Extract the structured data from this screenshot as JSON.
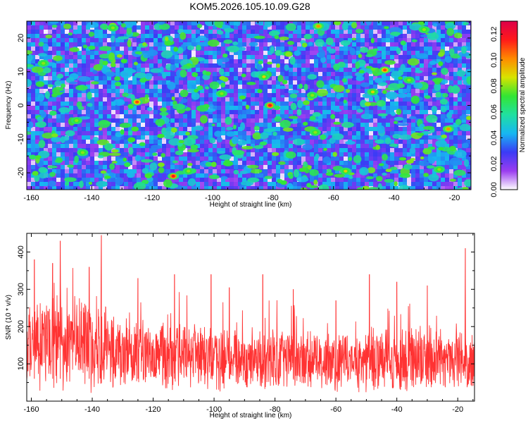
{
  "title": "KOM5.2026.105.10.09.G28",
  "chart_data": [
    {
      "type": "heatmap",
      "xlabel": "Height of straight line (km)",
      "ylabel": "Frequency (Hz)",
      "xlim": [
        -161.5,
        -14.5
      ],
      "ylim": [
        -25,
        25
      ],
      "xticks": [
        -160,
        -140,
        -120,
        -100,
        -80,
        -60,
        -40,
        -20
      ],
      "yticks": [
        -20,
        -10,
        0,
        10,
        20
      ],
      "colorbar": {
        "label": "Normalized spectral amplitude",
        "range": [
          0,
          0.13
        ],
        "ticks": [
          0.0,
          0.02,
          0.04,
          0.06,
          0.08,
          0.1,
          0.12
        ],
        "tick_labels": [
          "0.00",
          "0.02",
          "0.04",
          "0.06",
          "0.08",
          "0.10",
          "0.12"
        ],
        "colormap": [
          "#ffffff",
          "#9a3df0",
          "#3b3bf5",
          "#17b7f2",
          "#20e0a0",
          "#33e533",
          "#d8e400",
          "#ff8a00",
          "#ff1a1a",
          "#dd004a"
        ]
      },
      "peak_spots": [
        {
          "x": -113,
          "y": -21,
          "v": 0.12
        },
        {
          "x": -81,
          "y": 0,
          "v": 0.12
        },
        {
          "x": -125,
          "y": 1,
          "v": 0.11
        },
        {
          "x": -43,
          "y": 10.5,
          "v": 0.11
        },
        {
          "x": -65,
          "y": 23.5,
          "v": 0.1
        },
        {
          "x": -22,
          "y": -7,
          "v": 0.1
        },
        {
          "x": -143,
          "y": -14,
          "v": 0.08
        },
        {
          "x": -83,
          "y": 8.5,
          "v": 0.09
        },
        {
          "x": -56,
          "y": -19.5,
          "v": 0.09
        },
        {
          "x": -47,
          "y": 4,
          "v": 0.09
        },
        {
          "x": -145,
          "y": -4.5,
          "v": 0.08
        },
        {
          "x": -25,
          "y": -19,
          "v": 0.08
        },
        {
          "x": -97,
          "y": 3.5,
          "v": 0.08
        },
        {
          "x": -108,
          "y": -19.5,
          "v": 0.08
        },
        {
          "x": -133,
          "y": 23,
          "v": 0.08
        },
        {
          "x": -30,
          "y": 22.5,
          "v": 0.08
        },
        {
          "x": -156,
          "y": 12.5,
          "v": 0.08
        },
        {
          "x": -66,
          "y": -8,
          "v": 0.08
        },
        {
          "x": -35,
          "y": 7.5,
          "v": 0.08
        },
        {
          "x": -67,
          "y": 3,
          "v": 0.08
        }
      ]
    },
    {
      "type": "line",
      "xlabel": "Height of straight line (km)",
      "ylabel": "SNR (10 * v/v)",
      "xlim": [
        -161.5,
        -14.5
      ],
      "ylim": [
        0,
        450
      ],
      "xticks": [
        -160,
        -140,
        -120,
        -100,
        -80,
        -60,
        -40,
        -20
      ],
      "yticks": [
        100,
        200,
        300,
        400
      ],
      "color": "#ff3333",
      "series": [
        {
          "name": "SNR",
          "profile": [
            {
              "x": -161,
              "mean": 150,
              "amp": 120
            },
            {
              "x": -150,
              "mean": 160,
              "amp": 150
            },
            {
              "x": -140,
              "mean": 150,
              "amp": 140
            },
            {
              "x": -130,
              "mean": 130,
              "amp": 110
            },
            {
              "x": -120,
              "mean": 120,
              "amp": 100
            },
            {
              "x": -110,
              "mean": 120,
              "amp": 100
            },
            {
              "x": -100,
              "mean": 115,
              "amp": 95
            },
            {
              "x": -80,
              "mean": 110,
              "amp": 90
            },
            {
              "x": -60,
              "mean": 105,
              "amp": 85
            },
            {
              "x": -40,
              "mean": 115,
              "amp": 95
            },
            {
              "x": -15,
              "mean": 110,
              "amp": 90
            }
          ],
          "peaks": [
            {
              "x": -150.5,
              "y": 430
            },
            {
              "x": -137,
              "y": 445
            },
            {
              "x": -141,
              "y": 360
            },
            {
              "x": -153,
              "y": 370
            },
            {
              "x": -159,
              "y": 380
            },
            {
              "x": -125,
              "y": 330
            },
            {
              "x": -113,
              "y": 340
            },
            {
              "x": -101,
              "y": 340
            },
            {
              "x": -95,
              "y": 305
            },
            {
              "x": -84,
              "y": 340
            },
            {
              "x": -74,
              "y": 300
            },
            {
              "x": -49,
              "y": 340
            },
            {
              "x": -40,
              "y": 320
            },
            {
              "x": -30,
              "y": 310
            },
            {
              "x": -17.5,
              "y": 410
            },
            {
              "x": -60,
              "y": 270
            }
          ]
        }
      ]
    }
  ]
}
